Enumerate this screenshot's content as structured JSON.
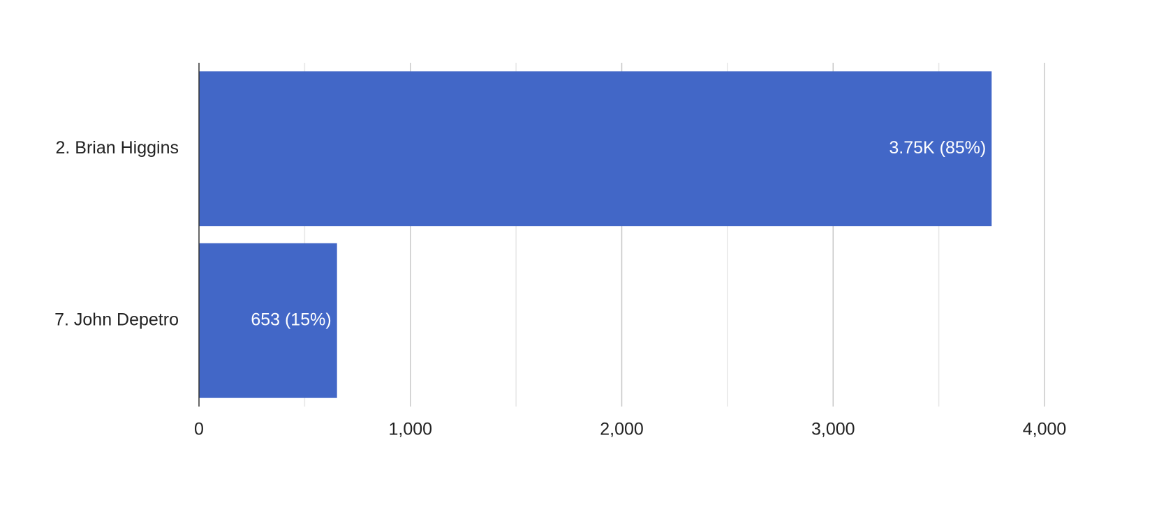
{
  "chart_data": {
    "type": "bar",
    "orientation": "horizontal",
    "categories": [
      "2. Brian Higgins",
      "7. John Depetro"
    ],
    "values": [
      3750,
      653
    ],
    "value_labels": [
      "3.75K (85%)",
      "653 (15%)"
    ],
    "color": "#4267c7",
    "xlim": [
      0,
      4000
    ],
    "xticks": [
      0,
      {
        "value": 1000,
        "label": "1,000"
      },
      {
        "value": 2000,
        "label": "2,000"
      },
      {
        "value": 3000,
        "label": "3,000"
      },
      {
        "value": 4000,
        "label": "4,000"
      }
    ],
    "minor_xticks": [
      500,
      1500,
      2500,
      3500
    ],
    "grid": true
  }
}
